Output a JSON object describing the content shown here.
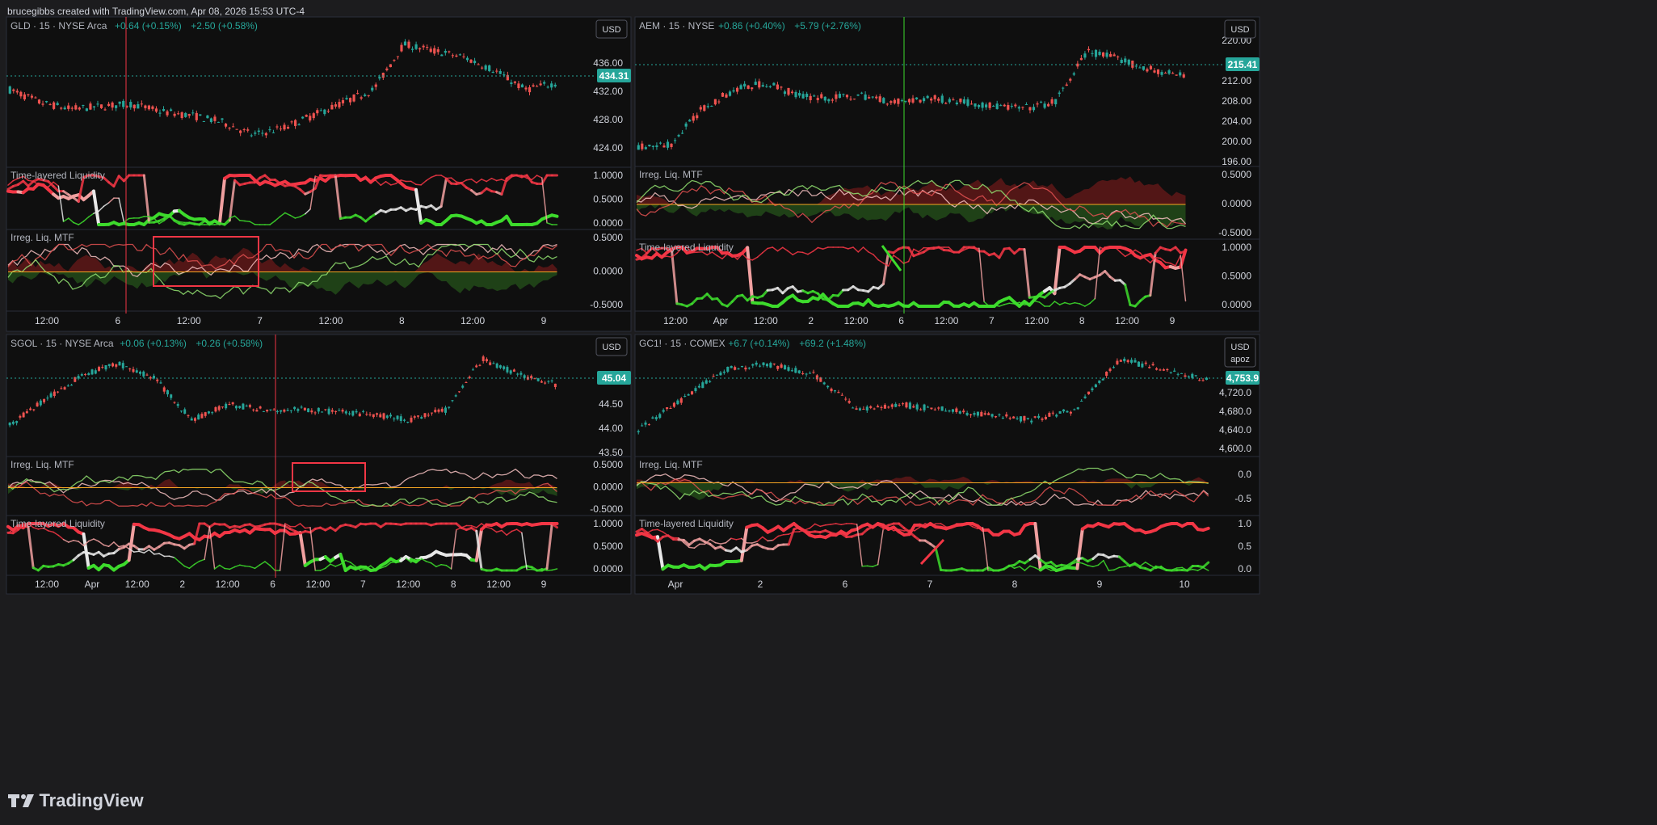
{
  "header": {
    "text": "brucegibbs created with TradingView.com, Apr 08, 2026 15:53 UTC-4"
  },
  "footer": {
    "brand": "TradingView"
  },
  "colors": {
    "bg": "#0f0f0f",
    "up": "#26a69a",
    "down": "#ef5350",
    "green": "#3ddb2c",
    "red": "#f23645",
    "zero_line": "#f5a623"
  },
  "panels": [
    {
      "id": "gld",
      "symbol": "GLD · 15 · NYSE Arca",
      "change1": "+0.64 (+0.15%)",
      "change2": "+2.50 (+0.58%)",
      "currency": "USD",
      "price_label": "434.31",
      "price_ticks": [
        "436.00",
        "432.00",
        "428.00",
        "424.00"
      ],
      "pane1": {
        "name": "Time-layered Liquidity",
        "ticks": [
          "1.0000",
          "0.5000",
          "0.0000"
        ]
      },
      "pane2": {
        "name": "Irreg. Liq. MTF",
        "ticks": [
          "0.5000",
          "0.0000",
          "-0.5000"
        ]
      },
      "time_ticks": [
        "12:00",
        "6",
        "12:00",
        "7",
        "12:00",
        "8",
        "12:00",
        "9"
      ]
    },
    {
      "id": "aem",
      "symbol": "AEM · 15 · NYSE",
      "change1": "+0.86 (+0.40%)",
      "change2": "+5.79 (+2.76%)",
      "currency": "USD",
      "price_label": "215.41",
      "price_ticks": [
        "220.00",
        "212.00",
        "208.00",
        "204.00",
        "200.00",
        "196.00"
      ],
      "pane1": {
        "name": "Irreg. Liq. MTF",
        "ticks": [
          "0.5000",
          "0.0000",
          "-0.5000"
        ]
      },
      "pane2": {
        "name": "Time-layered Liquidity",
        "ticks": [
          "1.0000",
          "0.5000",
          "0.0000"
        ]
      },
      "time_ticks": [
        "12:00",
        "Apr",
        "12:00",
        "2",
        "12:00",
        "6",
        "12:00",
        "7",
        "12:00",
        "8",
        "12:00",
        "9"
      ]
    },
    {
      "id": "sgol",
      "symbol": "SGOL · 15 · NYSE Arca",
      "change1": "+0.06 (+0.13%)",
      "change2": "+0.26 (+0.58%)",
      "currency": "USD",
      "price_label": "45.04",
      "price_ticks": [
        "44.50",
        "44.00",
        "43.50"
      ],
      "pane1": {
        "name": "Irreg. Liq. MTF",
        "ticks": [
          "0.5000",
          "0.0000",
          "-0.5000"
        ]
      },
      "pane2": {
        "name": "Time-layered Liquidity",
        "ticks": [
          "1.0000",
          "0.5000",
          "0.0000"
        ]
      },
      "time_ticks": [
        "12:00",
        "Apr",
        "12:00",
        "2",
        "12:00",
        "6",
        "12:00",
        "7",
        "12:00",
        "8",
        "12:00",
        "9"
      ]
    },
    {
      "id": "gc1",
      "symbol": "GC1! · 15 · COMEX",
      "change1": "+6.7 (+0.14%)",
      "change2": "+69.2 (+1.48%)",
      "currency": "USD",
      "currency2": "apoz",
      "price_label": "4,753.9",
      "price_ticks": [
        "4,720.0",
        "4,680.0",
        "4,640.0",
        "4,600.0"
      ],
      "pane1": {
        "name": "Irreg. Liq. MTF",
        "ticks": [
          "0.0",
          "-0.5"
        ]
      },
      "pane2": {
        "name": "Time-layered Liquidity",
        "ticks": [
          "1.0",
          "0.5",
          "0.0"
        ]
      },
      "time_ticks": [
        "Apr",
        "2",
        "6",
        "7",
        "8",
        "9",
        "10"
      ]
    }
  ]
}
